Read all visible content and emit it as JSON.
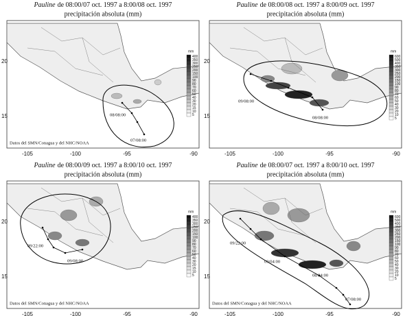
{
  "panels": [
    {
      "title": {
        "storm": "Pauline",
        "period": "de 08:00/07 oct. 1997 a 8:00/08 oct. 1997"
      },
      "subtitle": "precipitación absoluta (mm)",
      "credit": "Datos del SMN/Conagua y del NHC/NOAA",
      "lon_labels": [
        "-105",
        "-100",
        "-95",
        "-90"
      ],
      "lat_labels": [
        "20",
        "15"
      ],
      "colorbar": {
        "unit": "mm",
        "labels": [
          "400",
          "350",
          "300",
          "250",
          "200",
          "150",
          "100",
          "90",
          "80",
          "70",
          "60",
          "50",
          "40",
          "30",
          "20",
          "15",
          "10",
          "5"
        ]
      },
      "track_labels": [
        "08/08:00",
        "07/08:00"
      ]
    },
    {
      "title": {
        "storm": "Pauline",
        "period": "de 08:00/08 oct. 1997 a 8:00/09 oct. 1997"
      },
      "subtitle": "precipitación absoluta (mm)",
      "credit": "",
      "lon_labels": [
        "-105",
        "-100",
        "-95",
        "-90"
      ],
      "lat_labels": [
        "20",
        "15"
      ],
      "colorbar": {
        "unit": "mm",
        "labels": [
          "600",
          "500",
          "400",
          "350",
          "300",
          "250",
          "200",
          "150",
          "100",
          "90",
          "80",
          "70",
          "60",
          "50",
          "40",
          "30",
          "20",
          "10",
          "5"
        ]
      },
      "track_labels": [
        "09/08:00",
        "08/08:00"
      ]
    },
    {
      "title": {
        "storm": "Pauline",
        "period": "de 08:00/09 oct. 1997 a 8:00/10 oct. 1997"
      },
      "subtitle": "precipitación absoluta (mm)",
      "credit": "Datos del SMN/Conagua y del NHC/NOAA",
      "lon_labels": [
        "-105",
        "-100",
        "-95",
        "-90"
      ],
      "lat_labels": [
        "20",
        "15"
      ],
      "colorbar": {
        "unit": "mm",
        "labels": [
          "400",
          "350",
          "300",
          "250",
          "200",
          "150",
          "100",
          "90",
          "80",
          "70",
          "60",
          "50",
          "40",
          "30",
          "20",
          "15",
          "10",
          "5"
        ]
      },
      "track_labels": [
        "09/22:00",
        "09/08:00"
      ]
    },
    {
      "title": {
        "storm": "Pauline",
        "period": "de 08:00/07 oct. 1997 a 8:00/10 oct. 1997"
      },
      "subtitle": "precipitación absoluta (mm)",
      "credit": "Datos del SMN/Conagua y del NHC/NOAA",
      "lon_labels": [
        "-105",
        "-100",
        "-95",
        "-90"
      ],
      "lat_labels": [
        "20",
        "15"
      ],
      "colorbar": {
        "unit": "mm",
        "labels": [
          "600",
          "500",
          "400",
          "350",
          "300",
          "250",
          "200",
          "150",
          "100",
          "90",
          "80",
          "70",
          "60",
          "50",
          "40",
          "30",
          "20",
          "10",
          "5"
        ]
      },
      "track_labels": [
        "09/22:00",
        "09/04:00",
        "08/04:00",
        "07/08:00"
      ]
    }
  ]
}
